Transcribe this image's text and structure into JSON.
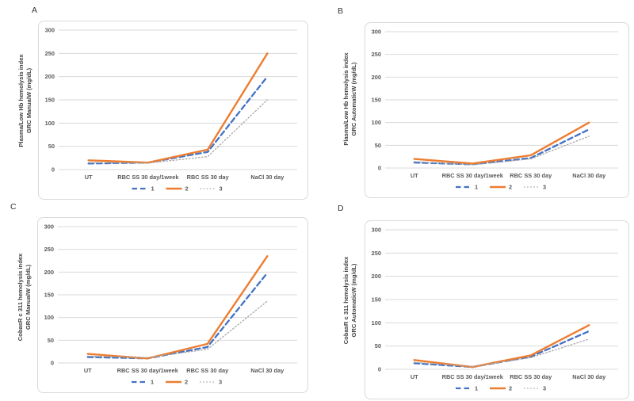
{
  "figure": {
    "background": "#ffffff",
    "grid_color": "#d9d9d9",
    "frame_color": "#d9d9d9",
    "tick_label_color": "#595959",
    "axis_title_color": "#404040"
  },
  "chart_data": [
    {
      "type": "line",
      "panel": "A",
      "ylabel_line1": "Plasma/Low Hb  hemolysis index",
      "ylabel_line2": "GRC ManualW (mg/dL)",
      "categories": [
        "UT",
        "RBC SS 30 day/1week",
        "RBC SS 30 day",
        "NaCl 30 day"
      ],
      "ylim": [
        0,
        300
      ],
      "ytick_step": 50,
      "yticks": [
        0,
        50,
        100,
        150,
        200,
        250,
        300
      ],
      "grid": true,
      "legend_position": "bottom",
      "series": [
        {
          "name": "1",
          "color": "#4472C4",
          "style": "dashed",
          "values": [
            13,
            15,
            38,
            200
          ]
        },
        {
          "name": "2",
          "color": "#ED7D31",
          "style": "solid",
          "values": [
            20,
            15,
            43,
            250
          ]
        },
        {
          "name": "3",
          "color": "#A6A6A6",
          "style": "dotted",
          "values": [
            15,
            14,
            28,
            150
          ]
        }
      ]
    },
    {
      "type": "line",
      "panel": "B",
      "ylabel_line1": "Plasma/Low Hb  hemolysis index",
      "ylabel_line2": "GRC AutomaticW (mg/dL)",
      "categories": [
        "UT",
        "RBC SS 30 day/1week",
        "RBC SS 30 day",
        "NaCl 30 day"
      ],
      "ylim": [
        0,
        300
      ],
      "ytick_step": 50,
      "yticks": [
        0,
        50,
        100,
        150,
        200,
        250,
        300
      ],
      "grid": true,
      "legend_position": "bottom",
      "series": [
        {
          "name": "1",
          "color": "#4472C4",
          "style": "dashed",
          "values": [
            12,
            8,
            22,
            85
          ]
        },
        {
          "name": "2",
          "color": "#ED7D31",
          "style": "solid",
          "values": [
            20,
            10,
            28,
            100
          ]
        },
        {
          "name": "3",
          "color": "#A6A6A6",
          "style": "dotted",
          "values": [
            14,
            7,
            20,
            70
          ]
        }
      ]
    },
    {
      "type": "line",
      "panel": "C",
      "ylabel_line1": "CobasR c 311 hemolysis index",
      "ylabel_line2": "GRC ManualW (mg/dL)",
      "categories": [
        "UT",
        "RBC SS 30 day/1week",
        "RBC SS 30 day",
        "NaCl 30 day"
      ],
      "ylim": [
        0,
        300
      ],
      "ytick_step": 50,
      "yticks": [
        0,
        50,
        100,
        150,
        200,
        250,
        300
      ],
      "grid": true,
      "legend_position": "bottom",
      "series": [
        {
          "name": "1",
          "color": "#4472C4",
          "style": "dashed",
          "values": [
            13,
            10,
            35,
            198
          ]
        },
        {
          "name": "2",
          "color": "#ED7D31",
          "style": "solid",
          "values": [
            20,
            10,
            42,
            235
          ]
        },
        {
          "name": "3",
          "color": "#A6A6A6",
          "style": "dotted",
          "values": [
            15,
            12,
            30,
            136
          ]
        }
      ]
    },
    {
      "type": "line",
      "panel": "D",
      "ylabel_line1": "CobasR c 311 hemolysis index",
      "ylabel_line2": "GRC AutomaticW (mg/dL)",
      "categories": [
        "UT",
        "RBC SS 30 day/1week",
        "RBC SS 30 day",
        "NaCl 30 day"
      ],
      "ylim": [
        0,
        300
      ],
      "ytick_step": 50,
      "yticks": [
        0,
        50,
        100,
        150,
        200,
        250,
        300
      ],
      "grid": true,
      "legend_position": "bottom",
      "series": [
        {
          "name": "1",
          "color": "#4472C4",
          "style": "dashed",
          "values": [
            13,
            5,
            27,
            82
          ]
        },
        {
          "name": "2",
          "color": "#ED7D31",
          "style": "solid",
          "values": [
            20,
            5,
            30,
            95
          ]
        },
        {
          "name": "3",
          "color": "#A6A6A6",
          "style": "dotted",
          "values": [
            15,
            6,
            25,
            65
          ]
        }
      ]
    }
  ]
}
